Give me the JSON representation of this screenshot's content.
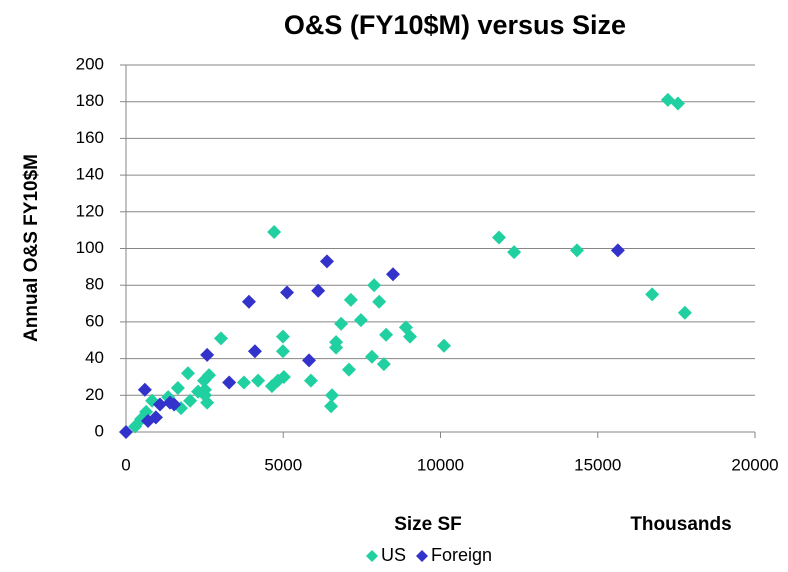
{
  "chart_data": {
    "type": "scatter",
    "title": "O&S (FY10$M) versus Size",
    "x_label": "Size SF",
    "x_units": "Thousands",
    "y_label": "Annual O&S FY10$M",
    "xlim": [
      0,
      20000
    ],
    "xticks": [
      0,
      5000,
      10000,
      15000,
      20000
    ],
    "ylim": [
      0,
      200
    ],
    "yticks": [
      0,
      20,
      40,
      60,
      80,
      100,
      120,
      140,
      160,
      180,
      200
    ],
    "grid": true,
    "legend": "bottom",
    "series": [
      {
        "name": "US",
        "color": "#20d0a0",
        "x": [
          17230,
          17550,
          4710,
          11860,
          12340,
          14340,
          16730,
          17770,
          10110,
          7890,
          8050,
          7150,
          6840,
          6680,
          6680,
          7470,
          8270,
          8900,
          9030,
          7820,
          8200,
          7090,
          6550,
          6520,
          4990,
          4990,
          5020,
          4830,
          5880,
          4640,
          4200,
          3750,
          3020,
          2640,
          2510,
          1650,
          1970,
          2480,
          2040,
          1750,
          1340,
          830,
          640,
          480,
          290,
          950,
          2510,
          2580,
          2290
        ],
        "values": [
          181,
          179,
          109,
          106,
          98,
          99,
          75,
          65,
          47,
          80,
          71,
          72,
          59,
          49,
          46,
          61,
          53,
          57,
          52,
          41,
          37,
          34,
          20,
          14,
          52,
          44,
          30,
          28,
          28,
          25,
          28,
          27,
          51,
          31,
          23,
          24,
          32,
          28,
          17,
          13,
          19,
          17,
          11,
          7,
          3,
          8,
          20,
          16,
          22
        ]
      },
      {
        "name": "Foreign",
        "color": "#3333cc",
        "x": [
          0,
          600,
          700,
          950,
          1080,
          1400,
          1530,
          2580,
          3280,
          3910,
          4100,
          5120,
          5820,
          6110,
          6390,
          8490,
          15640
        ],
        "values": [
          0,
          23,
          6,
          8,
          15,
          16,
          15,
          42,
          27,
          71,
          44,
          76,
          39,
          77,
          93,
          86,
          99
        ]
      }
    ]
  }
}
